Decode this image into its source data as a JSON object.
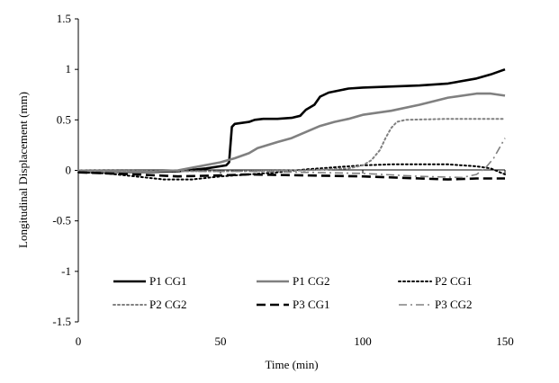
{
  "chart_data": {
    "type": "line",
    "title": "",
    "xlabel": "Time  (min)",
    "ylabel": "Longitudinal  Displacement  (mm)",
    "xlim": [
      0,
      150
    ],
    "ylim": [
      -1.5,
      1.5
    ],
    "xticks": [
      0,
      50,
      100,
      150
    ],
    "xtick_labels": [
      "0",
      "50",
      "100",
      "150"
    ],
    "yticks": [
      -1.5,
      -1,
      -0.5,
      0,
      0.5,
      1,
      1.5
    ],
    "ytick_labels": [
      "-1.5",
      "-1",
      "-0.5",
      "0",
      "0.5",
      "1",
      "1.5"
    ],
    "grid": false,
    "legend_position": "bottom",
    "series": [
      {
        "name": "P1 CG1",
        "color": "#000000",
        "dash": "solid",
        "width": 2.6,
        "points": [
          [
            0,
            -0.02
          ],
          [
            20,
            -0.02
          ],
          [
            35,
            -0.01
          ],
          [
            45,
            0.02
          ],
          [
            52,
            0.05
          ],
          [
            53,
            0.08
          ],
          [
            54,
            0.43
          ],
          [
            55,
            0.46
          ],
          [
            60,
            0.48
          ],
          [
            62,
            0.5
          ],
          [
            65,
            0.51
          ],
          [
            70,
            0.51
          ],
          [
            75,
            0.52
          ],
          [
            78,
            0.54
          ],
          [
            80,
            0.6
          ],
          [
            83,
            0.65
          ],
          [
            85,
            0.73
          ],
          [
            88,
            0.77
          ],
          [
            95,
            0.81
          ],
          [
            100,
            0.82
          ],
          [
            120,
            0.84
          ],
          [
            130,
            0.86
          ],
          [
            140,
            0.91
          ],
          [
            145,
            0.95
          ],
          [
            150,
            1.0
          ]
        ]
      },
      {
        "name": "P1 CG2",
        "color": "#808080",
        "dash": "solid",
        "width": 2.6,
        "points": [
          [
            0,
            -0.02
          ],
          [
            20,
            -0.02
          ],
          [
            35,
            0.0
          ],
          [
            50,
            0.08
          ],
          [
            55,
            0.12
          ],
          [
            60,
            0.17
          ],
          [
            63,
            0.22
          ],
          [
            70,
            0.28
          ],
          [
            75,
            0.32
          ],
          [
            80,
            0.38
          ],
          [
            85,
            0.44
          ],
          [
            90,
            0.48
          ],
          [
            95,
            0.51
          ],
          [
            100,
            0.55
          ],
          [
            110,
            0.59
          ],
          [
            120,
            0.65
          ],
          [
            130,
            0.72
          ],
          [
            140,
            0.76
          ],
          [
            145,
            0.76
          ],
          [
            150,
            0.74
          ]
        ]
      },
      {
        "name": "P2 CG1",
        "color": "#000000",
        "dash": "dot",
        "width": 2,
        "points": [
          [
            0,
            -0.02
          ],
          [
            10,
            -0.03
          ],
          [
            20,
            -0.06
          ],
          [
            30,
            -0.09
          ],
          [
            40,
            -0.09
          ],
          [
            50,
            -0.06
          ],
          [
            60,
            -0.04
          ],
          [
            70,
            -0.02
          ],
          [
            80,
            0.01
          ],
          [
            90,
            0.03
          ],
          [
            100,
            0.05
          ],
          [
            110,
            0.06
          ],
          [
            120,
            0.06
          ],
          [
            130,
            0.06
          ],
          [
            140,
            0.04
          ],
          [
            145,
            0.02
          ],
          [
            150,
            -0.04
          ]
        ]
      },
      {
        "name": "P2 CG2",
        "color": "#808080",
        "dash": "dot",
        "width": 2,
        "points": [
          [
            0,
            0.0
          ],
          [
            50,
            -0.01
          ],
          [
            80,
            0.0
          ],
          [
            95,
            0.02
          ],
          [
            100,
            0.05
          ],
          [
            103,
            0.1
          ],
          [
            106,
            0.2
          ],
          [
            108,
            0.32
          ],
          [
            110,
            0.42
          ],
          [
            112,
            0.48
          ],
          [
            115,
            0.5
          ],
          [
            130,
            0.51
          ],
          [
            150,
            0.51
          ]
        ]
      },
      {
        "name": "P3 CG1",
        "color": "#000000",
        "dash": "dash",
        "width": 2.6,
        "points": [
          [
            0,
            -0.02
          ],
          [
            20,
            -0.04
          ],
          [
            35,
            -0.06
          ],
          [
            50,
            -0.05
          ],
          [
            60,
            -0.04
          ],
          [
            80,
            -0.05
          ],
          [
            100,
            -0.06
          ],
          [
            120,
            -0.08
          ],
          [
            130,
            -0.09
          ],
          [
            140,
            -0.08
          ],
          [
            150,
            -0.08
          ]
        ]
      },
      {
        "name": "P3 CG2",
        "color": "#808080",
        "dash": "dashdot",
        "width": 1.6,
        "points": [
          [
            0,
            0.0
          ],
          [
            40,
            -0.01
          ],
          [
            60,
            -0.01
          ],
          [
            80,
            -0.02
          ],
          [
            100,
            -0.03
          ],
          [
            120,
            -0.06
          ],
          [
            135,
            -0.07
          ],
          [
            140,
            -0.04
          ],
          [
            143,
            0.02
          ],
          [
            146,
            0.12
          ],
          [
            148,
            0.22
          ],
          [
            150,
            0.32
          ]
        ]
      }
    ]
  }
}
